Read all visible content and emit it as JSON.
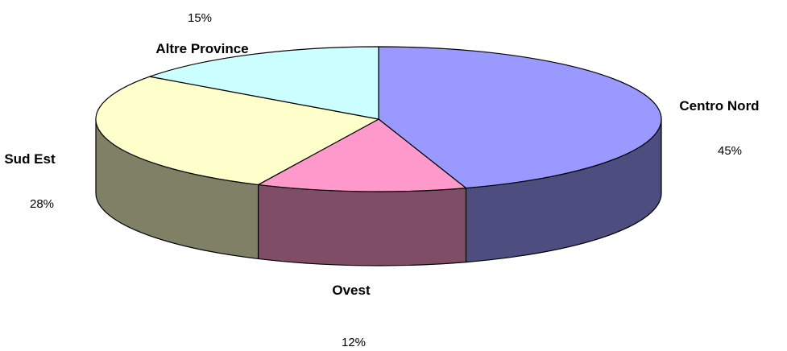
{
  "chart_data": {
    "type": "pie",
    "title": "",
    "style": "3d",
    "legend": "none",
    "slices": [
      {
        "label": "Centro Nord",
        "value": 45,
        "value_label": "45%",
        "color": "#9999ff",
        "side_color": "#4d4d80"
      },
      {
        "label": "Ovest",
        "value": 12,
        "value_label": "12%",
        "color": "#ff99cc",
        "side_color": "#804d66"
      },
      {
        "label": "Sud Est",
        "value": 28,
        "value_label": "28%",
        "color": "#ffffcc",
        "side_color": "#808066"
      },
      {
        "label": "Altre Province",
        "value": 15,
        "value_label": "15%",
        "color": "#ccffff",
        "side_color": "#668080"
      }
    ]
  }
}
